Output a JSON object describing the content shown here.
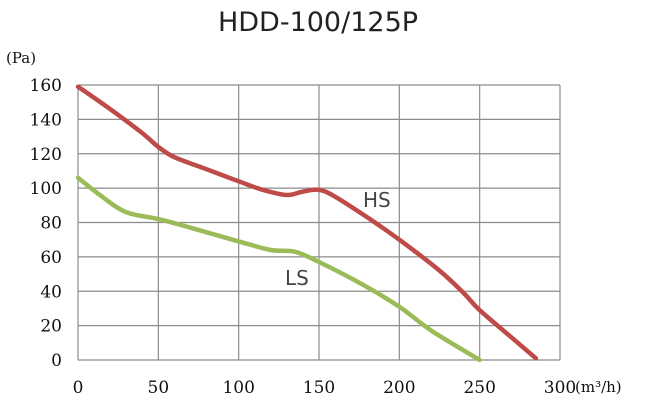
{
  "chart_data": {
    "type": "line",
    "title": "HDD-100/125P",
    "ylabel": "(Pa)",
    "xlabel": "(m³/h)",
    "xlim": [
      0,
      300
    ],
    "ylim": [
      0,
      160
    ],
    "x_ticks": [
      "0",
      "50",
      "100",
      "150",
      "200",
      "250",
      "300"
    ],
    "y_ticks": [
      "0",
      "20",
      "40",
      "60",
      "80",
      "100",
      "120",
      "140",
      "160"
    ],
    "grid": true,
    "series": [
      {
        "name": "HS",
        "color": "#be4b48",
        "points": [
          [
            0,
            159
          ],
          [
            20,
            146
          ],
          [
            40,
            132
          ],
          [
            50,
            124
          ],
          [
            60,
            118
          ],
          [
            80,
            111
          ],
          [
            100,
            104
          ],
          [
            115,
            99
          ],
          [
            130,
            96
          ],
          [
            140,
            98
          ],
          [
            150,
            99
          ],
          [
            160,
            95
          ],
          [
            180,
            83
          ],
          [
            200,
            70
          ],
          [
            225,
            52
          ],
          [
            240,
            39
          ],
          [
            250,
            29
          ],
          [
            270,
            13
          ],
          [
            285,
            1
          ]
        ]
      },
      {
        "name": "LS",
        "color": "#9bbb59",
        "points": [
          [
            0,
            106
          ],
          [
            15,
            95
          ],
          [
            30,
            86
          ],
          [
            50,
            82
          ],
          [
            70,
            77
          ],
          [
            100,
            69
          ],
          [
            120,
            64
          ],
          [
            135,
            63
          ],
          [
            150,
            57
          ],
          [
            175,
            45
          ],
          [
            200,
            31
          ],
          [
            220,
            17
          ],
          [
            250,
            0
          ]
        ]
      }
    ]
  }
}
